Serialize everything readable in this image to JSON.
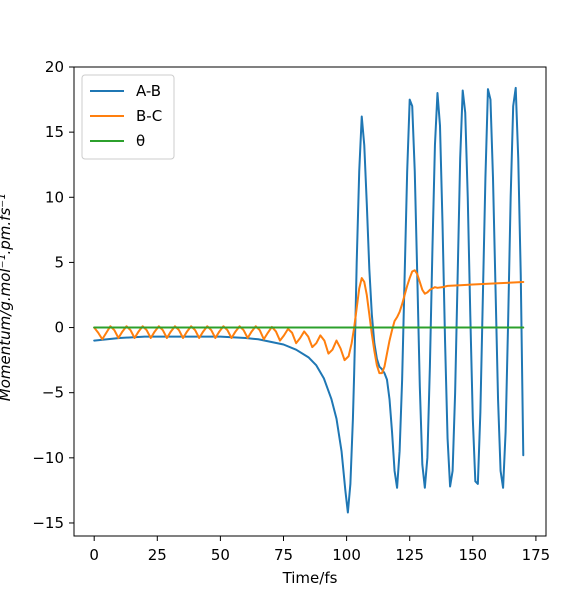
{
  "chart_data": {
    "type": "line",
    "xlabel": "Time/fs",
    "ylabel": "Momentum/g.mol⁻¹.pm.fs⁻¹",
    "xlim": [
      -8,
      179
    ],
    "ylim": [
      -16,
      20
    ],
    "xticks": [
      0,
      25,
      50,
      75,
      100,
      125,
      150,
      175
    ],
    "yticks": [
      -15,
      -10,
      -5,
      0,
      5,
      10,
      15,
      20
    ],
    "xtick_labels": [
      "0",
      "25",
      "50",
      "75",
      "100",
      "125",
      "150",
      "175"
    ],
    "ytick_labels": [
      "−15",
      "−10",
      "−5",
      "0",
      "5",
      "10",
      "15",
      "20"
    ],
    "legend": {
      "position": "top-left",
      "entries": [
        "A-B",
        "B-C",
        "θ"
      ]
    },
    "series": [
      {
        "name": "A-B",
        "color": "#1f77b4",
        "x": [
          0,
          10,
          20,
          30,
          40,
          50,
          60,
          65,
          70,
          75,
          80,
          85,
          88,
          91,
          94,
          96,
          98,
          99.5,
          100.5,
          101.5,
          102.5,
          103,
          103.5,
          104,
          105,
          106,
          107,
          108,
          109,
          110,
          111,
          112,
          113,
          114,
          115,
          116,
          117,
          118,
          119,
          120,
          121,
          122,
          123,
          124,
          125,
          126,
          127,
          128,
          129,
          130,
          131,
          132,
          133,
          134,
          135,
          136,
          137,
          138,
          139,
          140,
          141,
          142,
          143,
          144,
          145,
          146,
          147,
          148,
          149,
          150,
          151,
          152,
          153,
          154,
          155,
          156,
          157,
          158,
          159,
          160,
          161,
          162,
          163,
          164,
          165,
          166,
          167,
          168,
          169,
          170
        ],
        "y": [
          -1.0,
          -0.8,
          -0.7,
          -0.7,
          -0.7,
          -0.7,
          -0.8,
          -0.9,
          -1.1,
          -1.3,
          -1.7,
          -2.3,
          -2.9,
          -3.9,
          -5.5,
          -7.0,
          -9.5,
          -12.5,
          -14.2,
          -12.0,
          -7.0,
          -3.5,
          0.5,
          5.0,
          12.0,
          16.2,
          14.0,
          9.5,
          4.5,
          1.0,
          -1.2,
          -2.4,
          -3.0,
          -3.2,
          -3.5,
          -4.0,
          -5.5,
          -8.0,
          -11.0,
          -12.3,
          -9.5,
          -4.0,
          4.0,
          12.0,
          17.5,
          17.0,
          12.0,
          4.0,
          -4.5,
          -10.5,
          -12.3,
          -10.0,
          -3.0,
          6.0,
          14.0,
          18.0,
          15.5,
          8.0,
          -1.0,
          -8.5,
          -12.2,
          -11.0,
          -5.0,
          4.0,
          13.0,
          18.2,
          16.5,
          10.0,
          1.0,
          -7.0,
          -11.8,
          -12.0,
          -6.5,
          2.5,
          11.5,
          18.3,
          17.5,
          11.5,
          3.0,
          -5.5,
          -11.0,
          -12.3,
          -8.0,
          0.5,
          10.0,
          17.0,
          18.4,
          13.0,
          4.0,
          -9.8
        ]
      },
      {
        "name": "B-C",
        "color": "#ff7f0e",
        "x": [
          0,
          1.6,
          3.2,
          4.8,
          6.4,
          8,
          9.6,
          11.2,
          12.8,
          14.4,
          16,
          17.6,
          19.2,
          20.8,
          22.4,
          24,
          25.6,
          27.2,
          28.8,
          30.4,
          32,
          33.6,
          35.2,
          36.8,
          38.4,
          40,
          41.6,
          43.2,
          44.8,
          46.4,
          48,
          49.6,
          51.2,
          52.8,
          54.4,
          56,
          57.6,
          59.2,
          60.8,
          62.4,
          64,
          65.6,
          67.2,
          68.8,
          70.4,
          72,
          73.6,
          75.2,
          76.8,
          78.4,
          80,
          81.6,
          83.2,
          84.8,
          86.4,
          88,
          89.6,
          91.2,
          92.8,
          94.4,
          96,
          97.6,
          99.2,
          100.8,
          102,
          103,
          104,
          105,
          106,
          107,
          108,
          109,
          110,
          111,
          112,
          113,
          114,
          115,
          116,
          117,
          118,
          119,
          120,
          121,
          122,
          123,
          124,
          125,
          126,
          127,
          128,
          129,
          130,
          131,
          132,
          133,
          134,
          135,
          136,
          138,
          140,
          145,
          150,
          155,
          160,
          165,
          170
        ],
        "y": [
          0,
          -0.4,
          -0.9,
          -0.4,
          0.1,
          -0.2,
          -0.8,
          -0.3,
          0.1,
          -0.2,
          -0.8,
          -0.3,
          0.1,
          -0.2,
          -0.8,
          -0.3,
          0.1,
          -0.2,
          -0.8,
          -0.3,
          0.1,
          -0.2,
          -0.8,
          -0.3,
          0.1,
          -0.2,
          -0.8,
          -0.3,
          0.1,
          -0.2,
          -0.8,
          -0.3,
          0.1,
          -0.2,
          -0.8,
          -0.3,
          0.1,
          -0.2,
          -0.8,
          -0.3,
          0.1,
          -0.2,
          -0.9,
          -0.4,
          0.05,
          -0.3,
          -1.0,
          -0.6,
          -0.1,
          -0.4,
          -1.2,
          -0.8,
          -0.3,
          -0.7,
          -1.5,
          -1.2,
          -0.6,
          -1.0,
          -2.0,
          -1.7,
          -1.0,
          -1.6,
          -2.5,
          -2.2,
          -1.2,
          0.0,
          1.5,
          3.0,
          3.8,
          3.5,
          2.5,
          1.0,
          -0.5,
          -1.8,
          -2.9,
          -3.5,
          -3.5,
          -3.0,
          -2.0,
          -1.0,
          -0.2,
          0.5,
          0.8,
          1.2,
          1.8,
          2.5,
          3.2,
          3.8,
          4.3,
          4.4,
          4.1,
          3.5,
          2.9,
          2.6,
          2.7,
          2.9,
          3.0,
          3.1,
          3.05,
          3.1,
          3.2,
          3.25,
          3.3,
          3.35,
          3.4,
          3.45,
          3.5
        ]
      },
      {
        "name": "θ",
        "color": "#2ca02c",
        "x": [
          0,
          170
        ],
        "y": [
          0,
          0
        ]
      }
    ]
  }
}
